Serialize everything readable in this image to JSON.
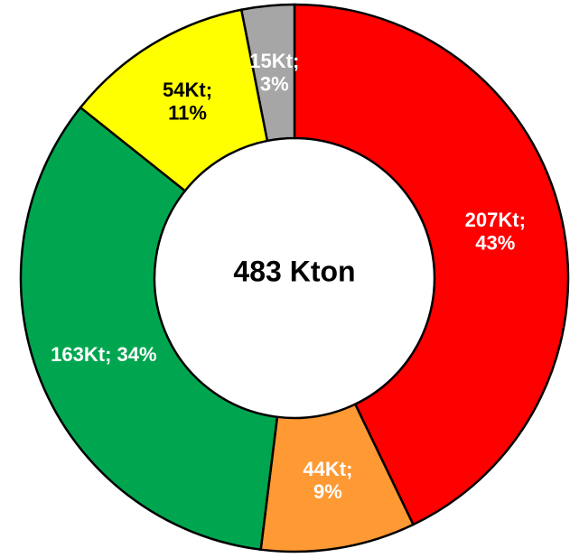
{
  "chart_data": {
    "type": "donut",
    "center_label": "483 Kton",
    "values": [
      207,
      44,
      163,
      54,
      15
    ],
    "value_labels": [
      "207Kt; 43%",
      "44Kt; 9%",
      "163Kt; 34%",
      "54Kt; 11%",
      "15Kt; 3%"
    ],
    "colors": [
      "#ff0000",
      "#ff9933",
      "#00a64f",
      "#ffff00",
      "#a6a6a6"
    ],
    "label_colors": [
      "#ffffff",
      "#ffffff",
      "#ffffff",
      "#000000",
      "#ffffff"
    ]
  }
}
